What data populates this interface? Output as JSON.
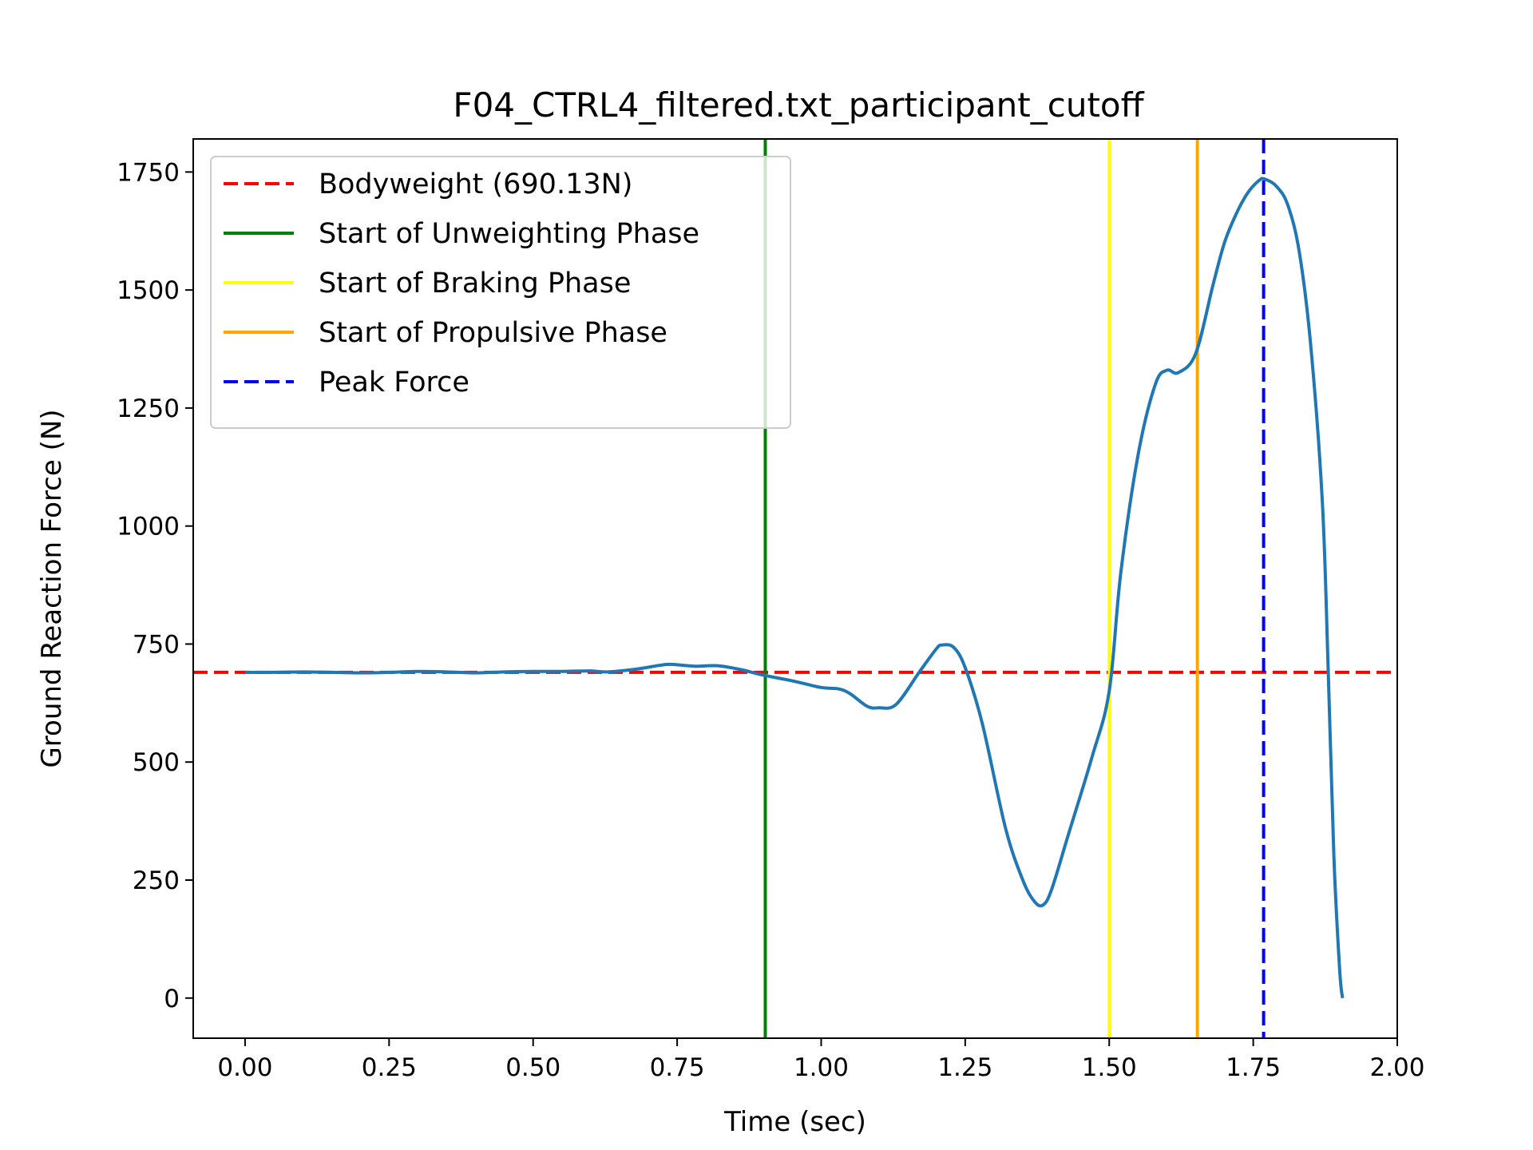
{
  "chart_data": {
    "type": "line",
    "title": "F04_CTRL4_filtered.txt_participant_cutoff",
    "xlabel": "Time (sec)",
    "ylabel": "Ground Reaction Force (N)",
    "xlim": [
      -0.09,
      2.0
    ],
    "ylim": [
      -85,
      1820
    ],
    "xticks": [
      0.0,
      0.25,
      0.5,
      0.75,
      1.0,
      1.25,
      1.5,
      1.75,
      2.0
    ],
    "xtick_labels": [
      "0.00",
      "0.25",
      "0.50",
      "0.75",
      "1.00",
      "1.25",
      "1.50",
      "1.75",
      "2.00"
    ],
    "yticks": [
      0,
      250,
      500,
      750,
      1000,
      1250,
      1500,
      1750
    ],
    "ytick_labels": [
      "0",
      "250",
      "500",
      "750",
      "1000",
      "1250",
      "1500",
      "1750"
    ],
    "legend_position": "upper-left",
    "series": [
      {
        "color": "#1f77b4",
        "x": [
          0.0,
          0.05,
          0.1,
          0.15,
          0.2,
          0.25,
          0.3,
          0.35,
          0.4,
          0.45,
          0.5,
          0.55,
          0.6,
          0.63,
          0.68,
          0.72,
          0.74,
          0.78,
          0.82,
          0.86,
          0.9,
          0.95,
          1.0,
          1.03,
          1.05,
          1.08,
          1.1,
          1.13,
          1.17,
          1.2,
          1.21,
          1.23,
          1.25,
          1.28,
          1.32,
          1.35,
          1.37,
          1.385,
          1.4,
          1.43,
          1.47,
          1.5,
          1.52,
          1.55,
          1.58,
          1.6,
          1.62,
          1.65,
          1.68,
          1.7,
          1.72,
          1.74,
          1.76,
          1.77,
          1.79,
          1.81,
          1.83,
          1.85,
          1.87,
          1.88,
          1.89,
          1.9,
          1.905
        ],
        "y": [
          690,
          690,
          691,
          690,
          689,
          690,
          692,
          691,
          689,
          691,
          692,
          692,
          693,
          691,
          697,
          705,
          707,
          703,
          704,
          696,
          684,
          672,
          658,
          655,
          645,
          618,
          615,
          622,
          690,
          740,
          748,
          743,
          700,
          580,
          360,
          250,
          205,
          197,
          230,
          350,
          510,
          650,
          900,
          1150,
          1300,
          1330,
          1325,
          1365,
          1510,
          1600,
          1660,
          1705,
          1732,
          1735,
          1720,
          1680,
          1580,
          1380,
          1050,
          700,
          300,
          60,
          0
        ]
      }
    ],
    "reference_lines": [
      {
        "label": "Bodyweight (690.13N)",
        "orientation": "horizontal",
        "value": 690.13,
        "color": "#ff0000",
        "style": "dashed"
      },
      {
        "label": "Start of Unweighting Phase",
        "orientation": "vertical",
        "value": 0.903,
        "color": "#008000",
        "style": "solid"
      },
      {
        "label": "Start of Braking Phase",
        "orientation": "vertical",
        "value": 1.5,
        "color": "#ffff00",
        "style": "solid"
      },
      {
        "label": "Start of Propulsive Phase",
        "orientation": "vertical",
        "value": 1.653,
        "color": "#ffa500",
        "style": "solid"
      },
      {
        "label": "Peak Force",
        "orientation": "vertical",
        "value": 1.768,
        "color": "#0000ff",
        "style": "dashed"
      }
    ]
  }
}
